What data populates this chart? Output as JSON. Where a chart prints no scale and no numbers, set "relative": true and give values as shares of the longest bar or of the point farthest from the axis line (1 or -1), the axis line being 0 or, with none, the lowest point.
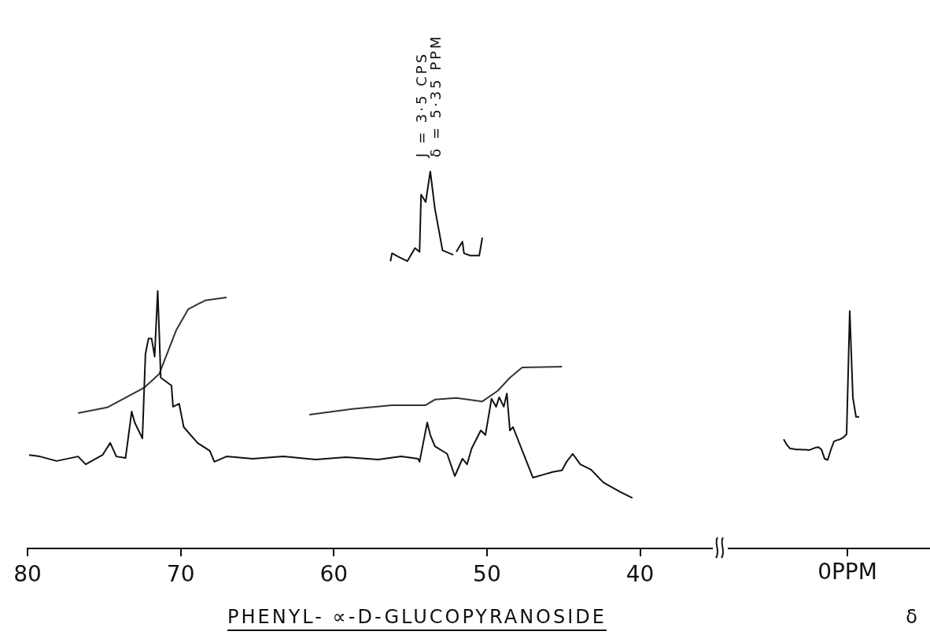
{
  "chart_data": [
    {
      "type": "line",
      "relative": true,
      "marker": "none",
      "line_style": "solid",
      "xlabel": "PHENYL- ∝-D-GLUCOPYRANOSIDE",
      "xlim": [
        80,
        35.3
      ],
      "xticks": [
        80,
        70,
        60,
        50,
        40
      ],
      "annotations": [
        "J = 3·5 CPS",
        "δ = 5·35 PPM"
      ],
      "series": [
        {
          "color": "#111111",
          "x": [
            79.9,
            79.2,
            78.1,
            76.7,
            76.2,
            75.1,
            74.6,
            74.2,
            73.6,
            73.2,
            73.0,
            72.5,
            72.3,
            72.1,
            71.9,
            71.7,
            71.5,
            71.4,
            71.3,
            70.6,
            70.5,
            70.1,
            69.8,
            68.9,
            68.1,
            67.8,
            67.0,
            65.3,
            63.3,
            61.2,
            59.2,
            57.1,
            55.6,
            54.5,
            54.4,
            53.9,
            53.7,
            53.4,
            52.6,
            52.1,
            51.6,
            51.3,
            51.0,
            50.4,
            50.1,
            49.7,
            49.4,
            49.2,
            48.9,
            48.7,
            48.5,
            48.3,
            47.0,
            46.3,
            45.7,
            45.1,
            44.8,
            44.4,
            43.9,
            43.2,
            42.4,
            41.3,
            40.5
          ],
          "values": [
            0.248,
            0.244,
            0.232,
            0.244,
            0.223,
            0.248,
            0.28,
            0.244,
            0.24,
            0.363,
            0.334,
            0.292,
            0.516,
            0.557,
            0.557,
            0.509,
            0.683,
            0.572,
            0.453,
            0.432,
            0.376,
            0.384,
            0.322,
            0.28,
            0.259,
            0.23,
            0.244,
            0.238,
            0.244,
            0.236,
            0.242,
            0.236,
            0.244,
            0.238,
            0.23,
            0.334,
            0.301,
            0.271,
            0.251,
            0.192,
            0.238,
            0.223,
            0.265,
            0.313,
            0.301,
            0.397,
            0.376,
            0.401,
            0.376,
            0.411,
            0.313,
            0.322,
            0.188,
            0.196,
            0.203,
            0.207,
            0.23,
            0.251,
            0.223,
            0.209,
            0.175,
            0.15,
            0.134
          ]
        },
        {
          "color": "#333333",
          "x": [
            76.7,
            74.8,
            72.4,
            71.4,
            70.3,
            69.5,
            68.4,
            67.0
          ],
          "values": [
            0.359,
            0.374,
            0.426,
            0.463,
            0.578,
            0.635,
            0.658,
            0.666
          ]
        },
        {
          "color": "#333333",
          "x": [
            61.6,
            58.8,
            56.2,
            54.0,
            53.4,
            52.0,
            50.3,
            49.3,
            48.5,
            47.7,
            45.1
          ],
          "values": [
            0.355,
            0.37,
            0.38,
            0.38,
            0.395,
            0.399,
            0.39,
            0.418,
            0.453,
            0.48,
            0.482
          ]
        },
        {
          "color": "#111111",
          "x": [
            56.3,
            56.2,
            55.7,
            55.2,
            54.7,
            54.4,
            54.3,
            54.0,
            53.7,
            53.4,
            52.9,
            52.2,
            52.1,
            52.0,
            51.6,
            51.5,
            51.1,
            50.5,
            50.3
          ],
          "values": [
            0.762,
            0.783,
            0.772,
            0.762,
            0.797,
            0.787,
            0.939,
            0.919,
            1,
            0.902,
            0.791,
            0.779,
            null,
            0.787,
            0.814,
            0.783,
            0.777,
            0.777,
            0.825
          ]
        }
      ]
    },
    {
      "type": "line",
      "relative": true,
      "marker": "none",
      "line_style": "solid",
      "xlabel": "δ",
      "annotations": [
        "0PPM"
      ],
      "categories": [
        null,
        null,
        null,
        null,
        null,
        null,
        null,
        null,
        null,
        null,
        null,
        null,
        null,
        null,
        null,
        null,
        null,
        null,
        null,
        null,
        null,
        null,
        null,
        null,
        null
      ],
      "series": [
        {
          "color": "#111111",
          "values": [
            0.46,
            0.437,
            0.421,
            0.419,
            0.417,
            0.417,
            0.416,
            0.416,
            0.414,
            0.419,
            0.424,
            0.427,
            0.417,
            0.378,
            0.373,
            0.416,
            0.451,
            0.456,
            0.46,
            0.468,
            0.481,
            1,
            0.635,
            0.554,
            0.554
          ]
        }
      ]
    }
  ]
}
